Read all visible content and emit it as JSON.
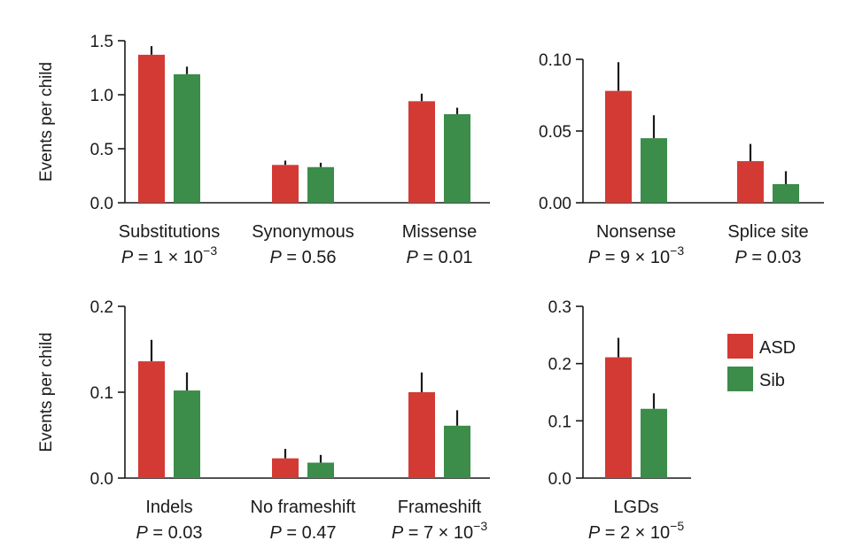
{
  "colors": {
    "ASD": "#d33a34",
    "Sib": "#3c8c4a",
    "axis": "#1a1a1a"
  },
  "legend": [
    {
      "name": "ASD",
      "color": "#d33a34"
    },
    {
      "name": "Sib",
      "color": "#3c8c4a"
    }
  ],
  "chart_data": [
    {
      "type": "bar",
      "panel": "top-left",
      "ylabel": "Events per child",
      "ylim": [
        0,
        1.5
      ],
      "yticks": [
        0,
        0.5,
        1.0,
        1.5
      ],
      "ytick_labels": [
        "0.0",
        "0.5",
        "1.0",
        "1.5"
      ],
      "categories": [
        "Substitutions",
        "Synonymous",
        "Missense"
      ],
      "p_values": [
        {
          "base": "P = 1 × 10",
          "exp": "−3"
        },
        {
          "base": "P = 0.56",
          "exp": ""
        },
        {
          "base": "P = 0.01",
          "exp": ""
        }
      ],
      "series": [
        {
          "name": "ASD",
          "values": [
            1.37,
            0.35,
            0.94
          ],
          "errors": [
            0.08,
            0.04,
            0.07
          ]
        },
        {
          "name": "Sib",
          "values": [
            1.19,
            0.33,
            0.82
          ],
          "errors": [
            0.07,
            0.04,
            0.06
          ]
        }
      ]
    },
    {
      "type": "bar",
      "panel": "top-right",
      "ylabel": "",
      "ylim": [
        0,
        0.1
      ],
      "yticks": [
        0,
        0.05,
        0.1
      ],
      "ytick_labels": [
        "0.00",
        "0.05",
        "0.10"
      ],
      "categories": [
        "Nonsense",
        "Splice site"
      ],
      "p_values": [
        {
          "base": "P = 9 × 10",
          "exp": "−3"
        },
        {
          "base": "P = 0.03",
          "exp": ""
        }
      ],
      "series": [
        {
          "name": "ASD",
          "values": [
            0.078,
            0.029
          ],
          "errors": [
            0.02,
            0.012
          ]
        },
        {
          "name": "Sib",
          "values": [
            0.045,
            0.013
          ],
          "errors": [
            0.016,
            0.009
          ]
        }
      ]
    },
    {
      "type": "bar",
      "panel": "bottom-left",
      "ylabel": "Events per child",
      "ylim": [
        0,
        0.2
      ],
      "yticks": [
        0,
        0.1,
        0.2
      ],
      "ytick_labels": [
        "0.0",
        "0.1",
        "0.2"
      ],
      "categories": [
        "Indels",
        "No frameshift",
        "Frameshift"
      ],
      "p_values": [
        {
          "base": "P = 0.03",
          "exp": ""
        },
        {
          "base": "P = 0.47",
          "exp": ""
        },
        {
          "base": "P = 7 × 10",
          "exp": "−3"
        }
      ],
      "series": [
        {
          "name": "ASD",
          "values": [
            0.136,
            0.023,
            0.1
          ],
          "errors": [
            0.025,
            0.011,
            0.023
          ]
        },
        {
          "name": "Sib",
          "values": [
            0.102,
            0.018,
            0.061
          ],
          "errors": [
            0.021,
            0.009,
            0.018
          ]
        }
      ]
    },
    {
      "type": "bar",
      "panel": "bottom-right",
      "ylabel": "",
      "ylim": [
        0,
        0.3
      ],
      "yticks": [
        0,
        0.1,
        0.2,
        0.3
      ],
      "ytick_labels": [
        "0.0",
        "0.1",
        "0.2",
        "0.3"
      ],
      "categories": [
        "LGDs"
      ],
      "p_values": [
        {
          "base": "P = 2 × 10",
          "exp": "−5"
        }
      ],
      "series": [
        {
          "name": "ASD",
          "values": [
            0.211
          ],
          "errors": [
            0.034
          ]
        },
        {
          "name": "Sib",
          "values": [
            0.121
          ],
          "errors": [
            0.027
          ]
        }
      ]
    }
  ]
}
